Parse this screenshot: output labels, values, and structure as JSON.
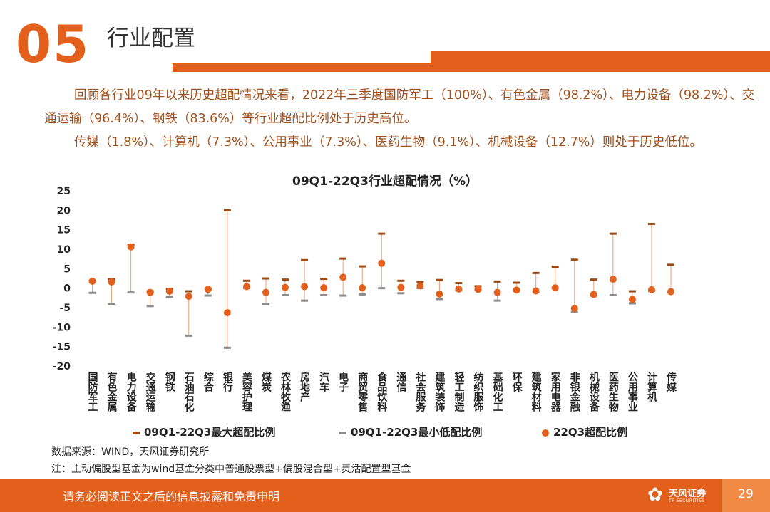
{
  "header": {
    "section_number": "05",
    "section_title": "行业配置"
  },
  "summary": {
    "para1": "回顾各行业09年以来历史超配情况来看，2022年三季度国防军工（100%）、有色金属（98.2%）、电力设备（98.2%）、交通运输（96.4%）、钢铁（83.6%）等行业超配比例处于历史高位。",
    "para2": "传媒（1.8%）、计算机（7.3%）、公用事业（7.3%）、医药生物（9.1%）、机械设备（12.7%）则处于历史低位。"
  },
  "chart_data": {
    "type": "scatter",
    "title": "09Q1-22Q3行业超配情况（%）",
    "ylim": [
      -20,
      25
    ],
    "yticks": [
      25,
      20,
      15,
      10,
      5,
      0,
      -5,
      -10,
      -15,
      -20
    ],
    "categories": [
      "国防军工",
      "有色金属",
      "电力设备",
      "交通运输",
      "钢铁",
      "石油石化",
      "综合",
      "银行",
      "美容护理",
      "煤炭",
      "农林牧渔",
      "房地产",
      "汽车",
      "电子",
      "商贸零售",
      "食品饮料",
      "通信",
      "社会服务",
      "建筑装饰",
      "轻工制造",
      "纺织服饰",
      "基础化工",
      "环保",
      "建筑材料",
      "家用电器",
      "非银金融",
      "机械设备",
      "医药生物",
      "公用事业",
      "计算机",
      "传媒"
    ],
    "series": [
      {
        "name": "09Q1-22Q3最大超配比例",
        "color": "#9c4a14",
        "values": [
          1.8,
          2.3,
          11.2,
          -0.8,
          -0.2,
          -0.8,
          -0.1,
          20.0,
          1.9,
          2.5,
          2.2,
          7.2,
          2.4,
          7.6,
          5.6,
          14.0,
          1.9,
          1.6,
          2.1,
          1.3,
          0.5,
          1.7,
          1.4,
          3.9,
          5.5,
          7.3,
          2.2,
          14.0,
          -0.8,
          16.5,
          6.0
        ]
      },
      {
        "name": "09Q1-22Q3最小低配比例",
        "color": "#8c8c8c",
        "values": [
          -1.2,
          -4.0,
          -1.1,
          -4.6,
          -2.2,
          -12.2,
          -1.9,
          -15.3,
          0.0,
          -4.0,
          -1.8,
          -3.2,
          -1.8,
          -1.9,
          -1.6,
          0.0,
          -1.3,
          0.0,
          -2.8,
          -0.6,
          -0.5,
          -3.2,
          -0.5,
          -0.9,
          0.0,
          -6.1,
          -1.9,
          -1.8,
          -3.9,
          -0.7,
          -1.1
        ]
      },
      {
        "name": "22Q3超配比例",
        "color": "#e2601c",
        "values": [
          1.8,
          1.6,
          10.6,
          -1.1,
          -0.8,
          -2.1,
          -0.3,
          -6.3,
          0.4,
          -1.1,
          0.2,
          0.4,
          0.1,
          2.8,
          0.1,
          6.4,
          0.2,
          0.6,
          -1.5,
          -0.2,
          -0.3,
          -1.1,
          -0.5,
          -0.7,
          0.1,
          -5.2,
          -1.6,
          2.3,
          -2.9,
          -0.4,
          -0.9
        ]
      }
    ]
  },
  "notes": {
    "source": "数据来源：WIND，天风证券研究所",
    "note": "注：主动偏股型基金为wind基金分类中普通股票型+偏股混合型+灵活配置型基金"
  },
  "footer": {
    "disclaimer": "请务必阅读正文之后的信息披露和免责申明",
    "logo_cn": "天风证券",
    "logo_en": "TF SECURITIES",
    "page_number": "29",
    "brand_color": "#e2601c"
  }
}
